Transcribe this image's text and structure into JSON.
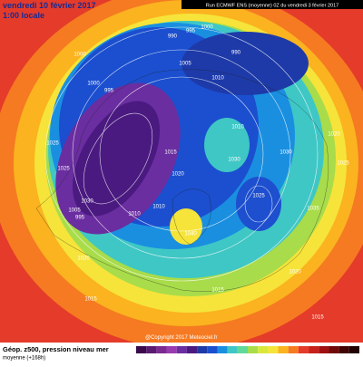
{
  "header": {
    "date": "vendredi 10 février 2017",
    "time": "1:00 locale",
    "run": "Run ECMWF ENS (moyenne) 0Z du vendredi 3 février 2017"
  },
  "isobars": [
    "990",
    "995",
    "1000",
    "1000",
    "995",
    "1000",
    "1005",
    "990",
    "1010",
    "1015",
    "1025",
    "1030",
    "1010",
    "1005",
    "995",
    "1010",
    "1020",
    "1030",
    "1025",
    "1010",
    "1040",
    "1035",
    "1020",
    "1025",
    "1030",
    "1015",
    "1020",
    "1015",
    "1025",
    "1020",
    "1015"
  ],
  "footer": {
    "copyright": "@Copyright 2017 Meteociel.fr",
    "title": "Géop. z500, pression niveau mer",
    "subtitle": "moyenne (+168h)"
  }
}
